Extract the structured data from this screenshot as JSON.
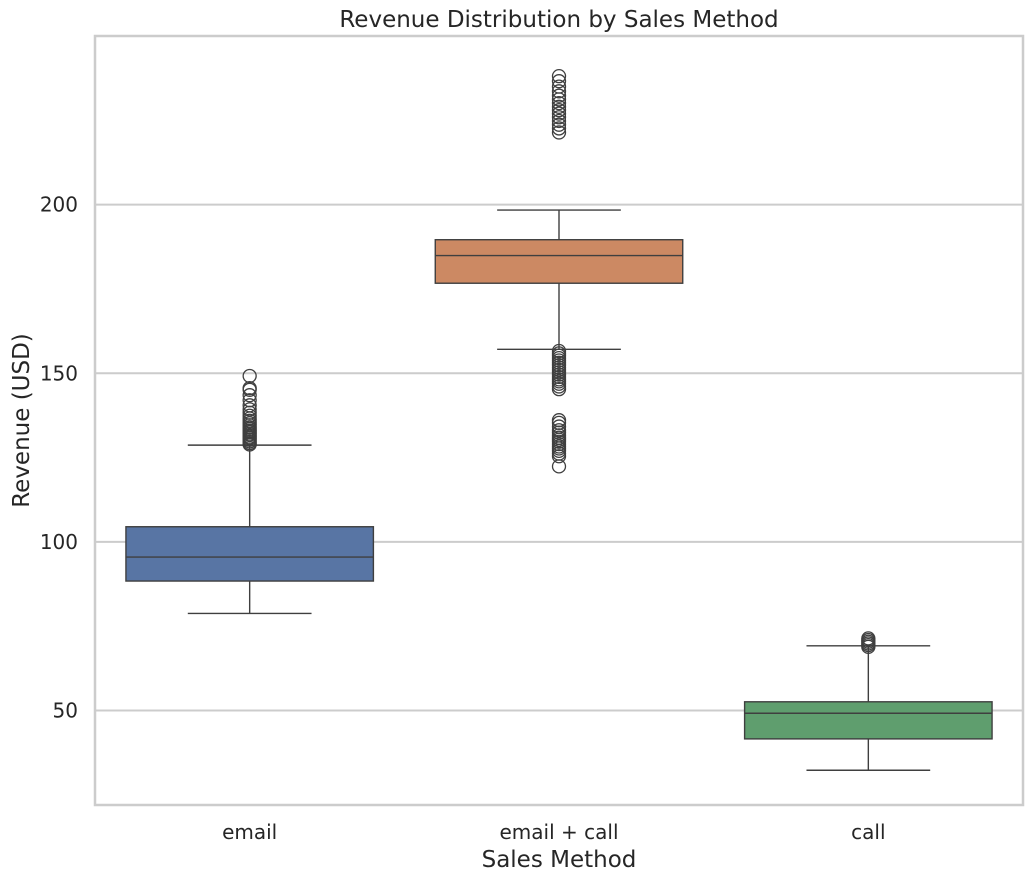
{
  "chart_data": {
    "type": "box",
    "title": "Revenue Distribution by Sales Method",
    "xlabel": "Sales Method",
    "ylabel": "Revenue (USD)",
    "ylim": [
      22,
      250
    ],
    "yticks": [
      50,
      100,
      150,
      200
    ],
    "grid": "horizontal",
    "categories": [
      "email",
      "email + call",
      "call"
    ],
    "series": [
      {
        "category": "email",
        "color": "#5875a4",
        "whisker_low": 78.8,
        "q1": 88.4,
        "median": 95.5,
        "q3": 104.5,
        "whisker_high": 128.7,
        "outliers": [
          128.9,
          129.3,
          129.8,
          130.3,
          130.8,
          131.2,
          131.7,
          132.1,
          132.6,
          133.0,
          133.5,
          134.0,
          134.6,
          135.2,
          135.9,
          136.6,
          137.4,
          138.3,
          139.3,
          140.5,
          142.0,
          143.5,
          145.1,
          145.6,
          149.2
        ]
      },
      {
        "category": "email + call",
        "color": "#cc8963",
        "whisker_low": 157.1,
        "q1": 176.7,
        "median": 184.9,
        "q3": 189.6,
        "whisker_high": 198.4,
        "outliers": [
          122.4,
          125.4,
          126.2,
          127.0,
          127.7,
          128.3,
          129.0,
          129.7,
          130.3,
          130.9,
          131.6,
          132.4,
          133.1,
          134.2,
          135.3,
          136.1,
          145.3,
          146.1,
          146.9,
          147.6,
          148.2,
          148.9,
          149.6,
          150.3,
          151.0,
          151.7,
          152.4,
          153.1,
          153.8,
          154.5,
          155.2,
          155.9,
          156.6,
          221.4,
          222.6,
          223.7,
          224.8,
          225.9,
          227.0,
          228.0,
          229.0,
          230.1,
          231.2,
          232.3,
          233.6,
          235.0,
          236.6,
          238.1
        ]
      },
      {
        "category": "call",
        "color": "#5f9e6e",
        "whisker_low": 32.3,
        "q1": 41.6,
        "median": 49.2,
        "q3": 52.6,
        "whisker_high": 69.2,
        "outliers": [
          68.9,
          69.4,
          69.9,
          70.4,
          70.9,
          71.4
        ]
      }
    ]
  }
}
